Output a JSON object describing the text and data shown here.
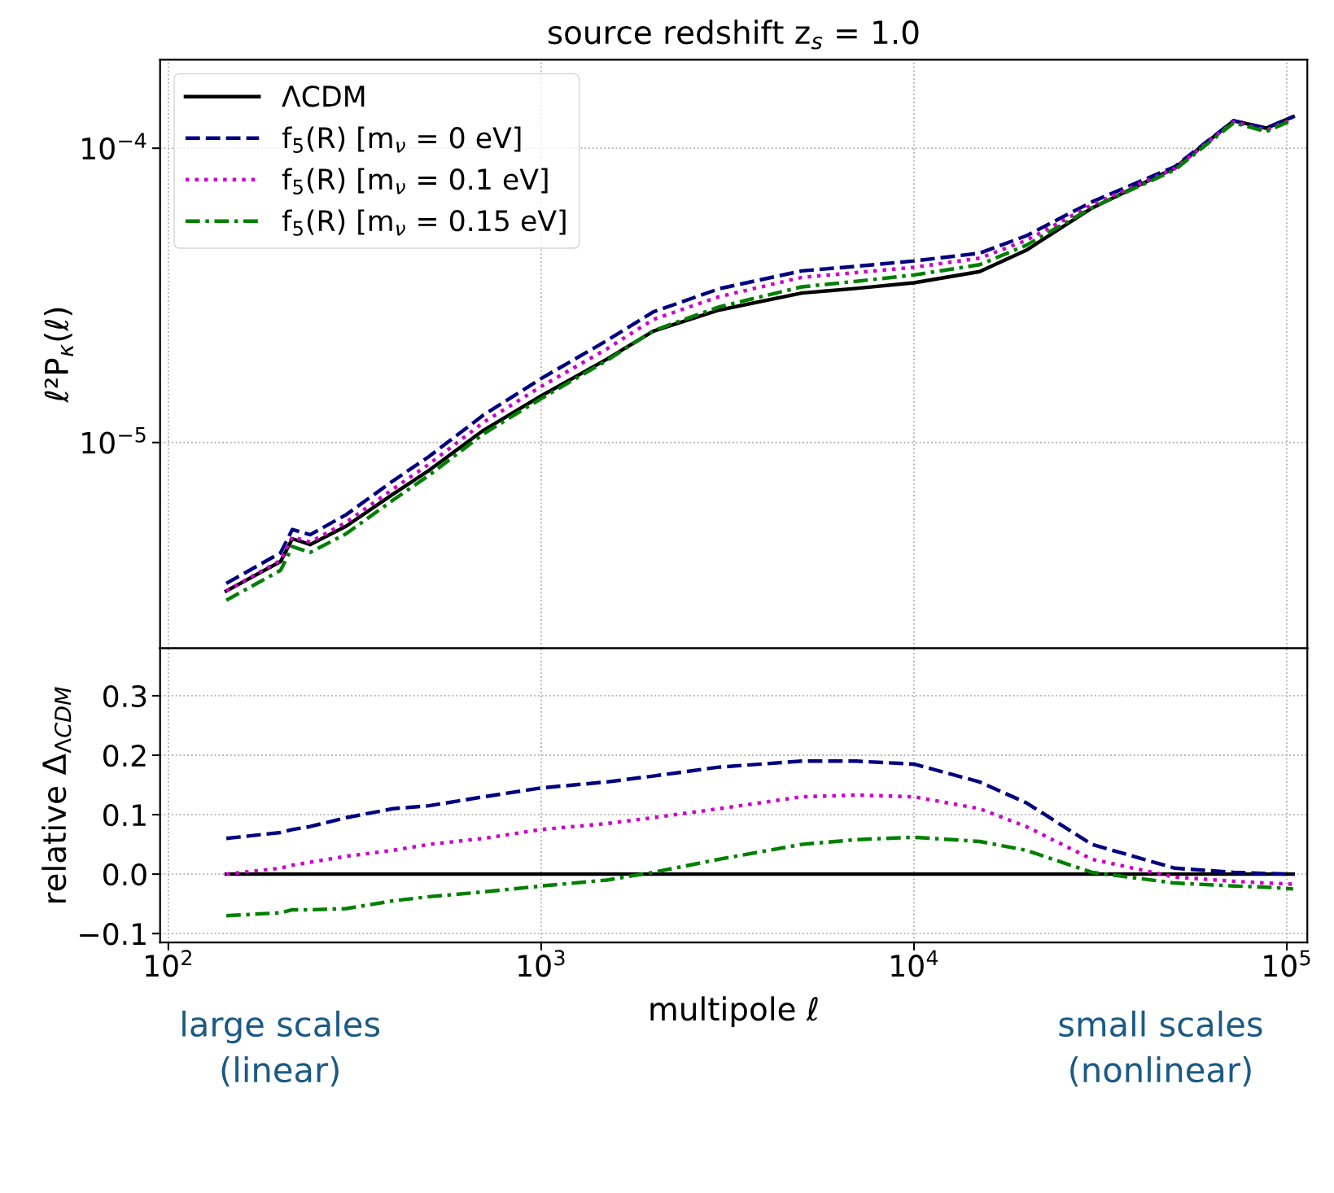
{
  "chart_data": [
    {
      "type": "line",
      "title": "source redshift z$_{s}$ = 1.0",
      "ylabel": "ℓ²P$_{κ}$(ℓ)",
      "log": "xy",
      "grid": true,
      "legend": "top left",
      "tick_labels": "y",
      "x": [
        143,
        200,
        215,
        240,
        300,
        400,
        500,
        700,
        1000,
        1500,
        2000,
        3000,
        5000,
        7000,
        10000,
        15000,
        20000,
        30000,
        50000,
        72000,
        88000,
        104000
      ],
      "xlim": [
        95,
        113500
      ],
      "ylim": [
        2e-06,
        0.0002
      ],
      "yticks": [
        {
          "value": 0.0001,
          "label": "10$^{−4}$"
        },
        {
          "value": 1e-05,
          "label": "10$^{−5}$"
        }
      ],
      "series": [
        {
          "name": "ΛCDM",
          "color": "#000000",
          "line_style": "solid",
          "values": [
            3.13e-06,
            3.94e-06,
            4.71e-06,
            4.5e-06,
            5.2e-06,
            6.67e-06,
            8.04e-06,
            1.1e-05,
            1.44e-05,
            1.92e-05,
            2.39e-05,
            2.82e-05,
            3.22e-05,
            3.34e-05,
            3.49e-05,
            3.81e-05,
            4.5e-05,
            6.26e-05,
            8.56e-05,
            0.000124,
            0.000117,
            0.000128
          ]
        },
        {
          "name": "f$_{5}$(R) [m$_{ν}$ = 0 eV]",
          "color": "#000080",
          "line_style": "dashed",
          "values": [
            3.32e-06,
            4.22e-06,
            5.06e-06,
            4.86e-06,
            5.69e-06,
            7.4e-06,
            8.96e-06,
            1.24e-05,
            1.65e-05,
            2.22e-05,
            2.78e-05,
            3.33e-05,
            3.83e-05,
            3.97e-05,
            4.14e-05,
            4.4e-05,
            5.04e-05,
            6.57e-05,
            8.65e-05,
            0.000124,
            0.000117,
            0.000128
          ]
        },
        {
          "name": "f$_{5}$(R) [m$_{ν}$ = 0.1 eV]",
          "color": "#cc00cc",
          "line_style": "dotted",
          "values": [
            3.13e-06,
            3.98e-06,
            4.78e-06,
            4.59e-06,
            5.36e-06,
            6.94e-06,
            8.44e-06,
            1.17e-05,
            1.55e-05,
            2.08e-05,
            2.62e-05,
            3.13e-05,
            3.64e-05,
            3.78e-05,
            3.94e-05,
            4.23e-05,
            4.86e-05,
            6.42e-05,
            8.52e-05,
            0.000123,
            0.000115,
            0.000126
          ]
        },
        {
          "name": "f$_{5}$(R) [m$_{ν}$ = 0.15 eV]",
          "color": "#008000",
          "line_style": "dashdot",
          "values": [
            2.91e-06,
            3.68e-06,
            4.43e-06,
            4.23e-06,
            4.9e-06,
            6.37e-06,
            7.73e-06,
            1.07e-05,
            1.41e-05,
            1.9e-05,
            2.4e-05,
            2.89e-05,
            3.38e-05,
            3.53e-05,
            3.71e-05,
            4.02e-05,
            4.68e-05,
            6.28e-05,
            8.43e-05,
            0.000122,
            0.000114,
            0.000125
          ]
        }
      ]
    },
    {
      "type": "line",
      "xlabel": "multipole ℓ",
      "ylabel": "relative Δ$_{ΛCDM}$",
      "log": "x",
      "grid": true,
      "x": [
        143,
        200,
        215,
        240,
        300,
        400,
        500,
        700,
        1000,
        1500,
        2000,
        3000,
        5000,
        7000,
        10000,
        15000,
        20000,
        30000,
        50000,
        72000,
        88000,
        104000
      ],
      "xlim": [
        95,
        113500
      ],
      "ylim": [
        -0.115,
        0.38
      ],
      "xticks": [
        {
          "value": 100,
          "label": "10$^{2}$"
        },
        {
          "value": 1000,
          "label": "10$^{3}$"
        },
        {
          "value": 10000,
          "label": "10$^{4}$"
        },
        {
          "value": 100000,
          "label": "10$^{5}$"
        }
      ],
      "yticks": [
        {
          "value": -0.1,
          "label": "−0.1"
        },
        {
          "value": 0,
          "label": "0.0"
        },
        {
          "value": 0.1,
          "label": "0.1"
        },
        {
          "value": 0.2,
          "label": "0.2"
        },
        {
          "value": 0.3,
          "label": "0.3"
        }
      ],
      "annotations": [
        "large scales\n(linear)",
        "small scales\n(nonlinear)"
      ],
      "series": [
        {
          "color": "#000000",
          "line_style": "solid",
          "values": [
            0,
            0,
            0,
            0,
            0,
            0,
            0,
            0,
            0,
            0,
            0,
            0,
            0,
            0,
            0,
            0,
            0,
            0,
            0,
            0,
            0,
            0
          ]
        },
        {
          "color": "#000080",
          "line_style": "dashed",
          "values": [
            0.06,
            0.07,
            0.075,
            0.08,
            0.095,
            0.11,
            0.115,
            0.13,
            0.145,
            0.155,
            0.165,
            0.18,
            0.19,
            0.19,
            0.185,
            0.155,
            0.12,
            0.05,
            0.01,
            0.003,
            0.001,
            0.0
          ]
        },
        {
          "color": "#cc00cc",
          "line_style": "dotted",
          "values": [
            0.0,
            0.01,
            0.015,
            0.02,
            0.03,
            0.04,
            0.05,
            0.06,
            0.075,
            0.085,
            0.095,
            0.11,
            0.13,
            0.133,
            0.13,
            0.11,
            0.08,
            0.025,
            -0.005,
            -0.012,
            -0.015,
            -0.017
          ]
        },
        {
          "color": "#008000",
          "line_style": "dashdot",
          "values": [
            -0.07,
            -0.065,
            -0.06,
            -0.06,
            -0.058,
            -0.045,
            -0.038,
            -0.03,
            -0.02,
            -0.01,
            0.003,
            0.025,
            0.05,
            0.058,
            0.062,
            0.055,
            0.04,
            0.003,
            -0.015,
            -0.02,
            -0.022,
            -0.025
          ]
        }
      ]
    }
  ]
}
